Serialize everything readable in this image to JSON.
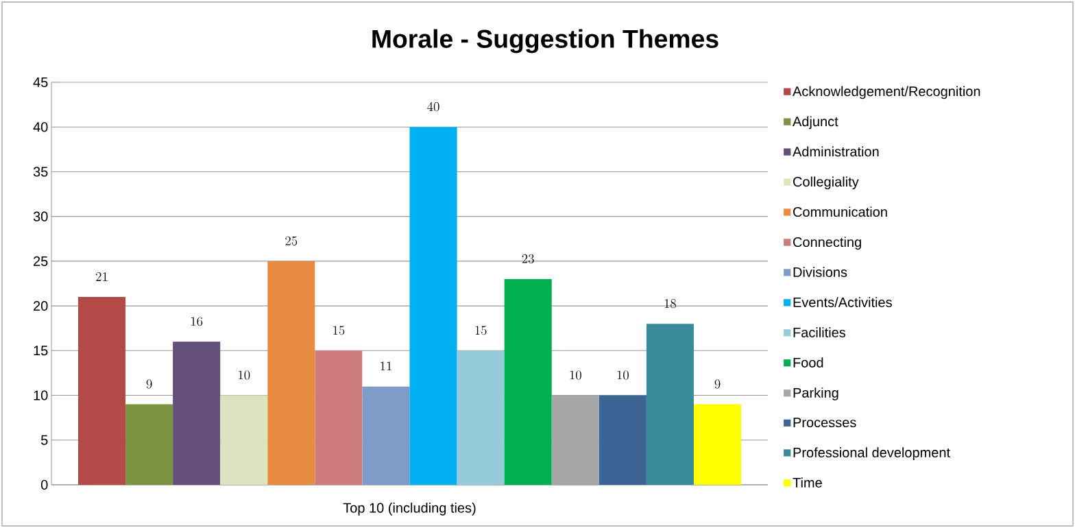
{
  "chart_data": {
    "type": "bar",
    "title": "Morale - Suggestion Themes",
    "categories": [
      "Top 10 (including ties)"
    ],
    "series": [
      {
        "name": "Acknowledgement/Recognition",
        "color": "#b34a47",
        "values": [
          21
        ]
      },
      {
        "name": "Adjunct",
        "color": "#7a9441",
        "values": [
          9
        ]
      },
      {
        "name": "Administration",
        "color": "#634e7c",
        "values": [
          16
        ]
      },
      {
        "name": "Collegiality",
        "color": "#dbe4be",
        "values": [
          10
        ]
      },
      {
        "name": "Communication",
        "color": "#e88c42",
        "values": [
          25
        ]
      },
      {
        "name": "Connecting",
        "color": "#cc7b7a",
        "values": [
          15
        ]
      },
      {
        "name": "Divisions",
        "color": "#7f9cc8",
        "values": [
          11
        ]
      },
      {
        "name": "Events/Activities",
        "color": "#00b0f0",
        "values": [
          40
        ]
      },
      {
        "name": "Facilities",
        "color": "#96cbdc",
        "values": [
          15
        ]
      },
      {
        "name": "Food",
        "color": "#00b050",
        "values": [
          23
        ]
      },
      {
        "name": "Parking",
        "color": "#a6a6a6",
        "values": [
          10
        ]
      },
      {
        "name": "Processes",
        "color": "#3c6494",
        "values": [
          10
        ]
      },
      {
        "name": "Professional development",
        "color": "#3a8a9c",
        "values": [
          18
        ]
      },
      {
        "name": "Time",
        "color": "#ffff00",
        "values": [
          9
        ]
      }
    ],
    "ylim": [
      0,
      45
    ],
    "yticks": [
      0,
      5,
      10,
      15,
      20,
      25,
      30,
      35,
      40,
      45
    ],
    "grid": "y",
    "legend": "right",
    "data_labels": true
  }
}
